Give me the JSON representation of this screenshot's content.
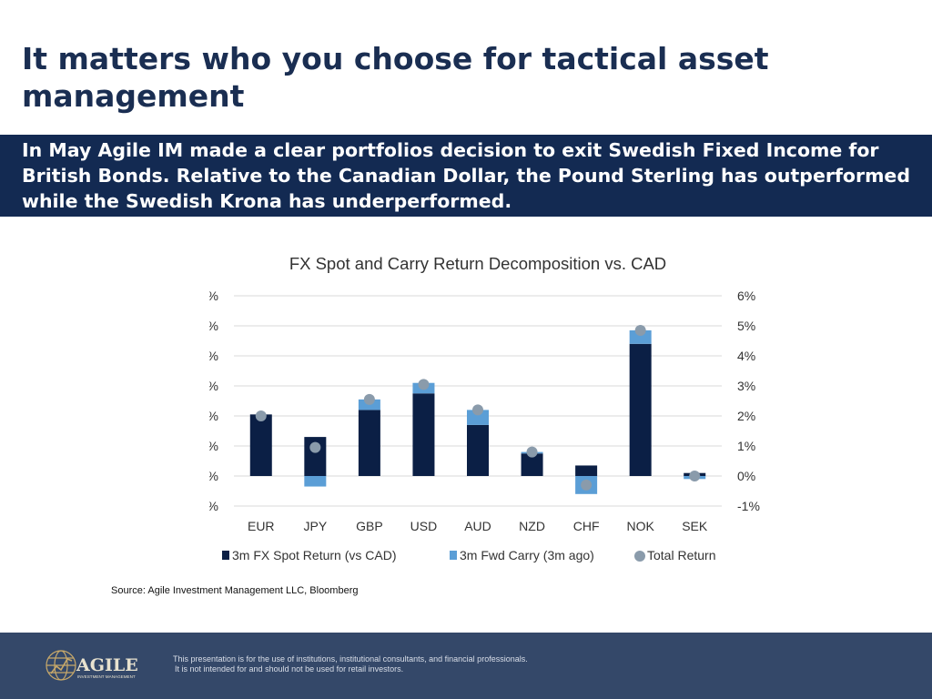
{
  "header": {
    "title": "It matters who you choose for tactical asset management"
  },
  "banner": {
    "text": "In May Agile IM made a clear portfolios decision to exit Swedish Fixed Income for British Bonds. Relative to the Canadian Dollar, the Pound Sterling has outperformed while the Swedish Krona has underperformed."
  },
  "chart_data": {
    "type": "bar",
    "title": "FX Spot and Carry Return Decomposition vs. CAD",
    "categories": [
      "EUR",
      "JPY",
      "GBP",
      "USD",
      "AUD",
      "NZD",
      "CHF",
      "NOK",
      "SEK"
    ],
    "series": [
      {
        "name": "3m FX Spot Return (vs CAD)",
        "kind": "stacked-bar",
        "color": "#0b1f45",
        "values": [
          2.05,
          1.3,
          2.2,
          2.75,
          1.7,
          0.75,
          0.35,
          4.4,
          0.1
        ]
      },
      {
        "name": "3m Fwd Carry (3m ago)",
        "kind": "stacked-bar",
        "color": "#5b9ed6",
        "values": [
          0.0,
          -0.35,
          0.35,
          0.35,
          0.5,
          0.05,
          -0.6,
          0.45,
          -0.1
        ]
      },
      {
        "name": "Total Return",
        "kind": "marker",
        "color": "#8a9bab",
        "values": [
          2.0,
          0.95,
          2.55,
          3.05,
          2.2,
          0.8,
          -0.3,
          4.85,
          0.0
        ]
      }
    ],
    "ylim": [
      -1,
      6
    ],
    "yticks": [
      "-1%",
      "0%",
      "1%",
      "2%",
      "3%",
      "4%",
      "5%",
      "6%"
    ],
    "secondary_axis": true,
    "grid": true,
    "legend": "bottom"
  },
  "source": "Source: Agile Investment Management LLC, Bloomberg",
  "footer": {
    "logo_text": "AGILE",
    "logo_sub": "INVESTMENT MANAGEMENT",
    "disclaimer_1": "This presentation is for the use of institutions, institutional consultants, and financial professionals.",
    "disclaimer_2": "It is not intended for and should not be used for retail investors."
  }
}
